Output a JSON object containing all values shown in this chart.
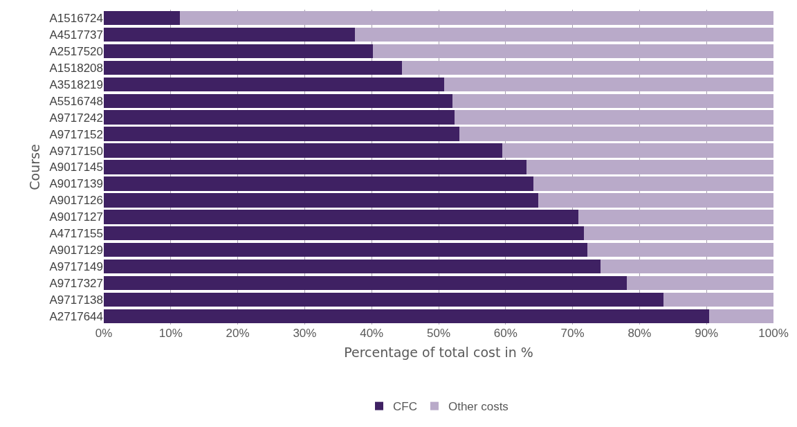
{
  "chart_data": {
    "type": "bar",
    "orientation": "horizontal",
    "stacked": true,
    "xlabel": "Percentage of total cost in %",
    "ylabel": "Course",
    "categories": [
      "A1516724",
      "A4517737",
      "A2517520",
      "A1518208",
      "A3518219",
      "A5516748",
      "A9717242",
      "A9717152",
      "A9717150",
      "A9017145",
      "A9017139",
      "A9017126",
      "A9017127",
      "A4717155",
      "A9017129",
      "A9717149",
      "A9717327",
      "A9717138",
      "A2717644"
    ],
    "series": [
      {
        "name": "CFC",
        "color": "#3f2163",
        "values": [
          11.4,
          37.5,
          40.2,
          44.5,
          50.8,
          52.1,
          52.4,
          53.1,
          59.5,
          63.1,
          64.2,
          64.9,
          70.9,
          71.7,
          72.2,
          74.2,
          78.1,
          83.6,
          90.4
        ]
      },
      {
        "name": "Other costs",
        "color": "#b9aac9",
        "values": [
          88.6,
          62.5,
          59.8,
          55.5,
          49.2,
          47.9,
          47.6,
          46.9,
          40.5,
          36.9,
          35.8,
          35.1,
          29.1,
          28.3,
          27.8,
          25.8,
          21.9,
          16.4,
          9.6
        ]
      }
    ],
    "xlim": [
      0,
      100
    ],
    "xticks": [
      {
        "value": 0,
        "label": "0%"
      },
      {
        "value": 10,
        "label": "10%"
      },
      {
        "value": 20,
        "label": "20%"
      },
      {
        "value": 30,
        "label": "30%"
      },
      {
        "value": 40,
        "label": "40%"
      },
      {
        "value": 50,
        "label": "50%"
      },
      {
        "value": 60,
        "label": "60%"
      },
      {
        "value": 70,
        "label": "70%"
      },
      {
        "value": 80,
        "label": "80%"
      },
      {
        "value": 90,
        "label": "90%"
      },
      {
        "value": 100,
        "label": "100%"
      }
    ],
    "grid": "x",
    "legend": "bottom"
  }
}
